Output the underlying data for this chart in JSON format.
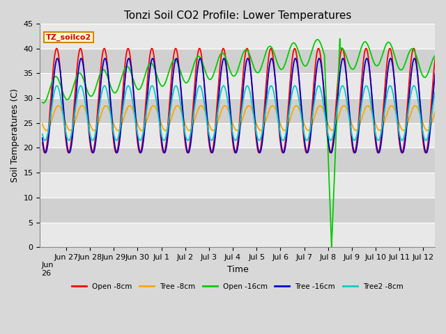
{
  "title": "Tonzi Soil CO2 Profile: Lower Temperatures",
  "xlabel": "Time",
  "ylabel": "Soil Temperatures (C)",
  "ylim": [
    0,
    45
  ],
  "yticks": [
    0,
    5,
    10,
    15,
    20,
    25,
    30,
    35,
    40,
    45
  ],
  "legend_label": "TZ_soilco2",
  "series_names": [
    "Open -8cm",
    "Tree -8cm",
    "Open -16cm",
    "Tree -16cm",
    "Tree2 -8cm"
  ],
  "series_colors": [
    "#FF0000",
    "#FFA500",
    "#00CC00",
    "#0000CC",
    "#00CCCC"
  ],
  "bg_color": "#D8D8D8",
  "plot_bg_light": "#E8E8E8",
  "plot_bg_dark": "#D0D0D0",
  "grid_color": "#FFFFFF",
  "title_fontsize": 11,
  "axis_fontsize": 9,
  "tick_fontsize": 8,
  "x_tick_labels": [
    "Jun 27",
    "Jun 28",
    "Jun 29",
    "Jun 30",
    "Jul 1",
    "Jul 2",
    "Jul 3",
    "Jul 4",
    "Jul 5",
    "Jul 6",
    "Jul 7",
    "Jul 8",
    "Jul 9",
    "Jul 10",
    "Jul 11",
    "Jul 12"
  ],
  "x_tick_positions": [
    1,
    2,
    3,
    4,
    5,
    6,
    7,
    8,
    9,
    10,
    11,
    12,
    13,
    14,
    15,
    16
  ],
  "xlim": [
    -0.1,
    16.5
  ],
  "green_spike_down_start": 11.85,
  "green_spike_bottom": 12.15,
  "green_spike_up_end": 12.5
}
